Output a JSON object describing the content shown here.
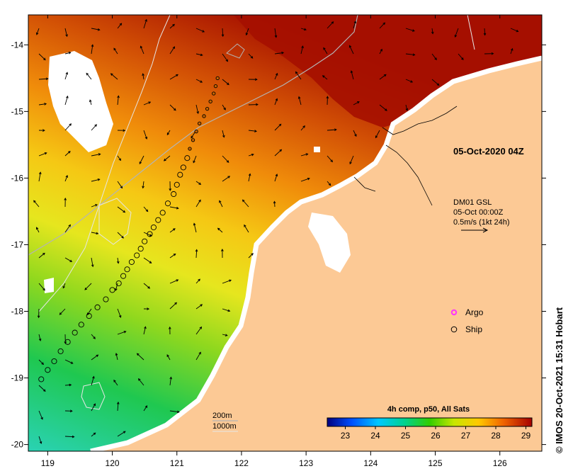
{
  "title": "",
  "map": {
    "date_label": "05-Oct-2020 04Z",
    "current_product": "DM01 GSL",
    "current_time": "05-Oct 00:00Z",
    "current_scale": "0.5m/s (1kt 24h)",
    "isobath_1": "200m",
    "isobath_2": "1000m",
    "legend": {
      "argo": "Argo",
      "ship": "Ship"
    },
    "colorbar": {
      "title": "4h comp, p50, All Sats",
      "ticks": [
        "23",
        "24",
        "25",
        "26",
        "27",
        "28",
        "29"
      ],
      "range": [
        22.4,
        29.2
      ]
    },
    "lon_ticks": [
      "119",
      "120",
      "121",
      "122",
      "123",
      "124",
      "125",
      "126"
    ],
    "lat_ticks": [
      "-14",
      "-15",
      "-16",
      "-17",
      "-18",
      "-19",
      "-20"
    ],
    "credit": "© IMOS 20-Oct-2021 15:31 Hobart"
  },
  "colors": {
    "land": "#fcc995",
    "warm": "#a50f00",
    "cool": "#2ad2b4",
    "arrow": "#000000",
    "ship_marker": "#c86400",
    "argo_marker": "#ff33ff"
  },
  "chart_data": {
    "type": "map",
    "xlim": [
      118.7,
      126.65
    ],
    "ylim": [
      -20.1,
      -13.55
    ],
    "ship_track": [
      [
        118.9,
        -19.02
      ],
      [
        119.0,
        -18.88
      ],
      [
        119.1,
        -18.75
      ],
      [
        119.2,
        -18.6
      ],
      [
        119.31,
        -18.46
      ],
      [
        119.42,
        -18.32
      ],
      [
        119.52,
        -18.2
      ],
      [
        119.64,
        -18.07
      ],
      [
        119.77,
        -17.94
      ],
      [
        119.9,
        -17.82
      ],
      [
        120.0,
        -17.68
      ],
      [
        120.1,
        -17.58
      ],
      [
        120.17,
        -17.47
      ],
      [
        120.23,
        -17.37
      ],
      [
        120.3,
        -17.26
      ],
      [
        120.38,
        -17.16
      ],
      [
        120.44,
        -17.06
      ],
      [
        120.5,
        -16.95
      ],
      [
        120.58,
        -16.84
      ],
      [
        120.64,
        -16.74
      ],
      [
        120.71,
        -16.63
      ],
      [
        120.78,
        -16.52
      ],
      [
        120.86,
        -16.38
      ],
      [
        120.95,
        -16.24
      ],
      [
        121.0,
        -16.1
      ],
      [
        121.05,
        -15.95
      ],
      [
        121.1,
        -15.84
      ],
      [
        121.16,
        -15.7
      ],
      [
        121.2,
        -15.56
      ],
      [
        121.25,
        -15.43
      ],
      [
        121.3,
        -15.3
      ],
      [
        121.35,
        -15.18
      ],
      [
        121.42,
        -15.07
      ],
      [
        121.47,
        -14.96
      ],
      [
        121.52,
        -14.85
      ],
      [
        121.57,
        -14.73
      ],
      [
        121.6,
        -14.62
      ],
      [
        121.63,
        -14.5
      ]
    ]
  }
}
